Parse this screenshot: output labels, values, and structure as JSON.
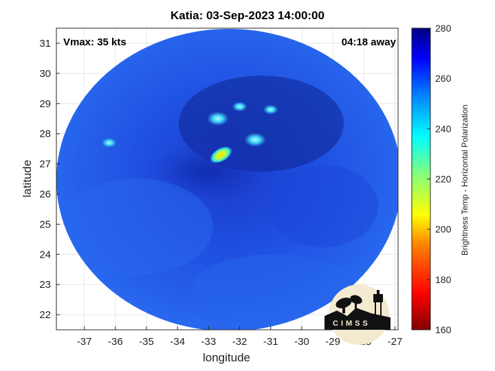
{
  "title": "Katia: 03-Sep-2023 14:00:00",
  "vmax_label": "Vmax: 35 kts",
  "away_label": "04:18 away",
  "xlabel": "longitude",
  "ylabel": "latitude",
  "colorbar_label": "Brightness Temp - Horizontal Polarization",
  "logo_text": "CIMSS",
  "colors": {
    "background_field": "#1f4fe0",
    "cold_core": "#ffd400",
    "warm_edge": "#0a1f9c"
  },
  "x_ticks": [
    "-37",
    "-36",
    "-35",
    "-34",
    "-33",
    "-32",
    "-31",
    "-30",
    "-29",
    "-28",
    "-27"
  ],
  "y_ticks": [
    "22",
    "23",
    "24",
    "25",
    "26",
    "27",
    "28",
    "29",
    "30",
    "31"
  ],
  "colorbar_ticks": [
    "160",
    "180",
    "200",
    "220",
    "240",
    "260",
    "280"
  ],
  "map": {
    "xlim": [
      -37.9,
      -26.9
    ],
    "ylim": [
      21.5,
      31.5
    ],
    "center": [
      -32.0,
      26.5
    ],
    "features": [
      {
        "lon": -32.6,
        "lat": 27.3,
        "tb": 205
      },
      {
        "lon": -32.7,
        "lat": 28.5,
        "tb": 238
      },
      {
        "lon": -31.5,
        "lat": 27.8,
        "tb": 240
      },
      {
        "lon": -32.0,
        "lat": 28.9,
        "tb": 244
      },
      {
        "lon": -31.0,
        "lat": 28.8,
        "tb": 248
      },
      {
        "lon": -36.2,
        "lat": 27.7,
        "tb": 246
      }
    ]
  }
}
